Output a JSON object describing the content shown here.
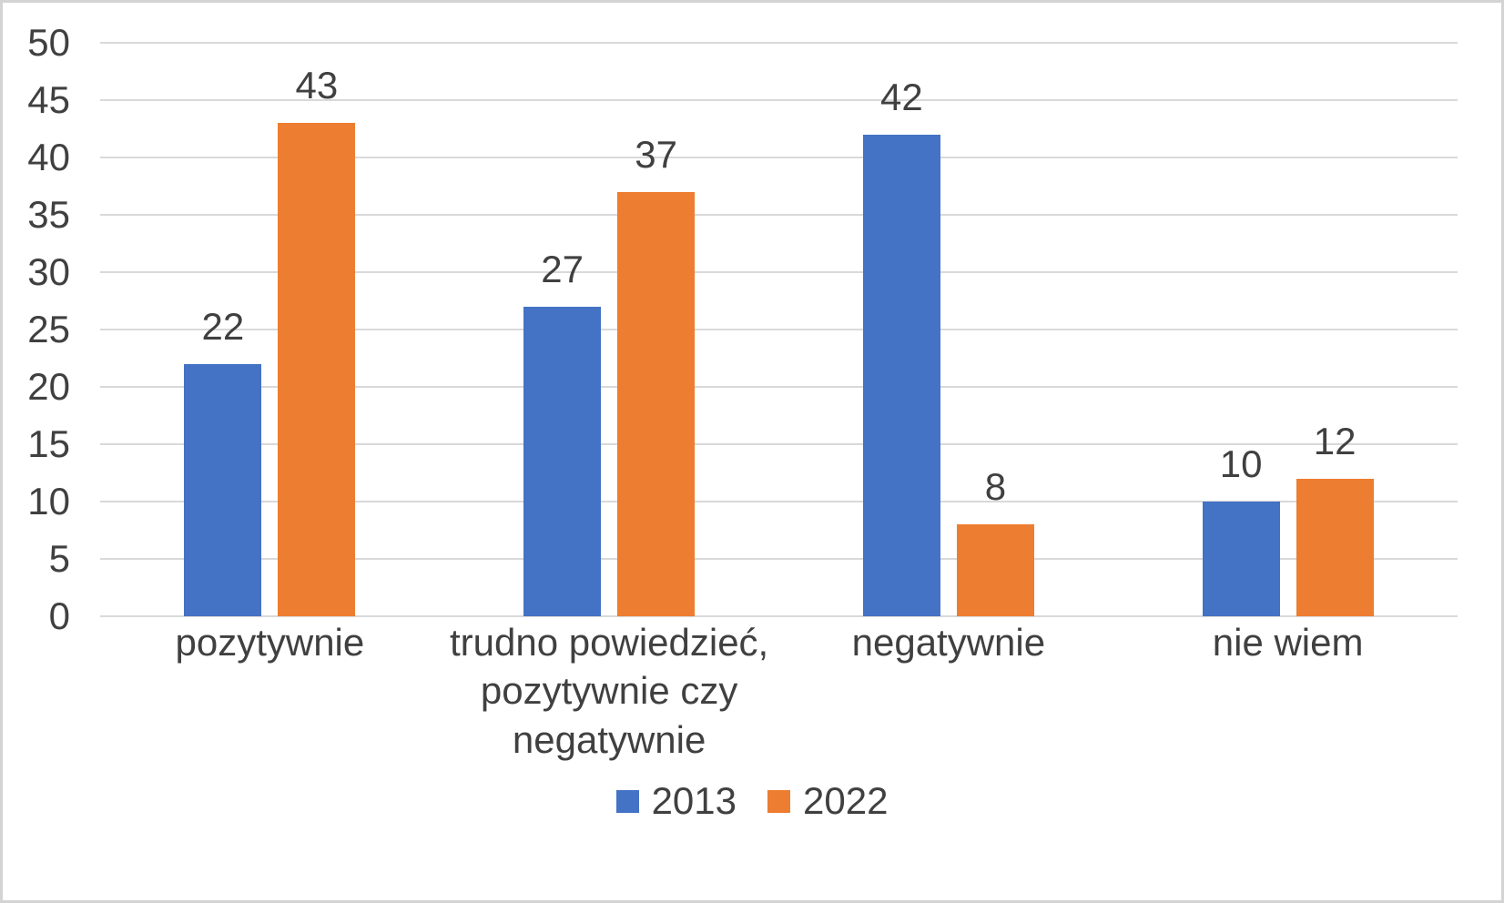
{
  "chart_data": {
    "type": "bar",
    "title": "",
    "categories": [
      "pozytywnie",
      "trudno powiedzieć, pozytywnie czy negatywnie",
      "negatywnie",
      "nie wiem"
    ],
    "series": [
      {
        "name": "2013",
        "color": "#4472C4",
        "values": [
          22,
          27,
          42,
          10
        ]
      },
      {
        "name": "2022",
        "color": "#ED7D31",
        "values": [
          43,
          37,
          8,
          12
        ]
      }
    ],
    "ylim": [
      0,
      50
    ],
    "y_tick_step": 5,
    "y_ticks": [
      0,
      5,
      10,
      15,
      20,
      25,
      30,
      35,
      40,
      45,
      50
    ],
    "grid": "horizontal",
    "legend_position": "bottom",
    "data_labels": "outside-end"
  },
  "colors": {
    "series_2013": "#4472C4",
    "series_2022": "#ED7D31",
    "gridline": "#D9D9D9",
    "axis_line": "#D9D9D9",
    "text": "#404040",
    "background": "#FFFFFF",
    "page_border": "#D3D3D3"
  }
}
